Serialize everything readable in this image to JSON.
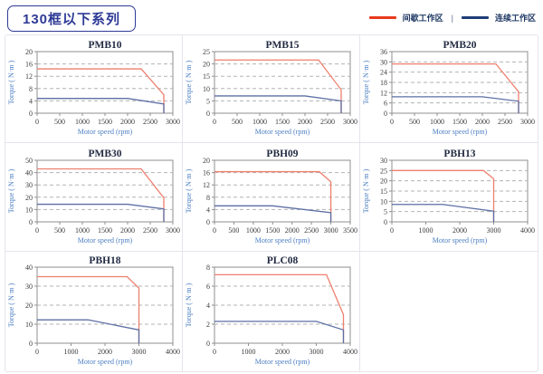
{
  "header": {
    "badge": "130框以下系列"
  },
  "legend": {
    "items": [
      {
        "label": "间歇工作区",
        "color": "#e8391d"
      },
      {
        "label": "连续工作区",
        "color": "#1e3c78"
      }
    ],
    "separator": "|"
  },
  "colors": {
    "chart_red": "#ee7f6d",
    "chart_blue": "#5d6fa5",
    "grid_line": "#b3b3b3",
    "plot_border": "#8f8f8f"
  },
  "axis": {
    "xlabel": "Motor speed (rpm)",
    "ylabel": "Torque ( N·m )"
  },
  "chart_data": [
    {
      "type": "line",
      "title": "PMB10",
      "xlabel": "Motor speed (rpm)",
      "ylabel": "Torque ( N·m )",
      "xlim": [
        0,
        3000
      ],
      "ylim": [
        0,
        20
      ],
      "xticks": [
        0,
        500,
        1000,
        1500,
        2000,
        2500,
        3000
      ],
      "yticks": [
        0,
        4,
        8,
        12,
        16,
        20
      ],
      "series": [
        {
          "name": "间歇工作区",
          "color": "red",
          "points": [
            [
              0,
              14.4
            ],
            [
              2300,
              14.4
            ],
            [
              2800,
              6
            ],
            [
              2800,
              0
            ]
          ]
        },
        {
          "name": "连续工作区",
          "color": "blue",
          "points": [
            [
              0,
              4.8
            ],
            [
              2000,
              4.8
            ],
            [
              2800,
              3
            ],
            [
              2800,
              0
            ]
          ]
        }
      ]
    },
    {
      "type": "line",
      "title": "PMB15",
      "xlabel": "Motor speed (rpm)",
      "ylabel": "Torque ( N·m )",
      "xlim": [
        0,
        3000
      ],
      "ylim": [
        0,
        25
      ],
      "xticks": [
        0,
        500,
        1000,
        1500,
        2000,
        2500,
        3000
      ],
      "yticks": [
        0,
        5,
        10,
        15,
        20,
        25
      ],
      "series": [
        {
          "name": "间歇工作区",
          "color": "red",
          "points": [
            [
              0,
              21.6
            ],
            [
              2300,
              21.6
            ],
            [
              2800,
              9.5
            ],
            [
              2800,
              0
            ]
          ]
        },
        {
          "name": "连续工作区",
          "color": "blue",
          "points": [
            [
              0,
              7
            ],
            [
              2000,
              7
            ],
            [
              2800,
              5
            ],
            [
              2800,
              0
            ]
          ]
        }
      ]
    },
    {
      "type": "line",
      "title": "PMB20",
      "xlabel": "Motor speed (rpm)",
      "ylabel": "Torque ( N·m )",
      "xlim": [
        0,
        3000
      ],
      "ylim": [
        0,
        36
      ],
      "xticks": [
        0,
        500,
        1000,
        1500,
        2000,
        2500,
        3000
      ],
      "yticks": [
        0,
        6,
        12,
        18,
        24,
        30,
        36
      ],
      "series": [
        {
          "name": "间歇工作区",
          "color": "red",
          "points": [
            [
              0,
              28.8
            ],
            [
              2300,
              28.8
            ],
            [
              2800,
              12.5
            ],
            [
              2800,
              0
            ]
          ]
        },
        {
          "name": "连续工作区",
          "color": "blue",
          "points": [
            [
              0,
              9.6
            ],
            [
              2000,
              9.6
            ],
            [
              2800,
              7
            ],
            [
              2800,
              0
            ]
          ]
        }
      ]
    },
    {
      "type": "line",
      "title": "PMB30",
      "xlabel": "Motor speed (rpm)",
      "ylabel": "Torque ( N·m )",
      "xlim": [
        0,
        3000
      ],
      "ylim": [
        0,
        50
      ],
      "xticks": [
        0,
        500,
        1000,
        1500,
        2000,
        2500,
        3000
      ],
      "yticks": [
        0,
        10,
        20,
        30,
        40,
        50
      ],
      "series": [
        {
          "name": "间歇工作区",
          "color": "red",
          "points": [
            [
              0,
              43
            ],
            [
              2300,
              43
            ],
            [
              2800,
              19.5
            ],
            [
              2800,
              0
            ]
          ]
        },
        {
          "name": "连续工作区",
          "color": "blue",
          "points": [
            [
              0,
              14.3
            ],
            [
              2000,
              14.3
            ],
            [
              2800,
              10.5
            ],
            [
              2800,
              0
            ]
          ]
        }
      ]
    },
    {
      "type": "line",
      "title": "PBH09",
      "xlabel": "Motor speed (rpm)",
      "ylabel": "Torque ( N·m )",
      "xlim": [
        0,
        3500
      ],
      "ylim": [
        0,
        20
      ],
      "xticks": [
        0,
        500,
        1000,
        1500,
        2000,
        2500,
        3000,
        3500
      ],
      "yticks": [
        0,
        4,
        8,
        12,
        16,
        20
      ],
      "series": [
        {
          "name": "间歇工作区",
          "color": "red",
          "points": [
            [
              0,
              16.3
            ],
            [
              2700,
              16.3
            ],
            [
              3000,
              13
            ],
            [
              3000,
              0
            ]
          ]
        },
        {
          "name": "连续工作区",
          "color": "blue",
          "points": [
            [
              0,
              5.2
            ],
            [
              1500,
              5.2
            ],
            [
              3000,
              3
            ],
            [
              3000,
              0
            ]
          ]
        }
      ]
    },
    {
      "type": "line",
      "title": "PBH13",
      "xlabel": "Motor speed (rpm)",
      "ylabel": "Torque ( N·m )",
      "xlim": [
        0,
        4000
      ],
      "ylim": [
        0,
        30
      ],
      "xticks": [
        0,
        1000,
        2000,
        3000,
        4000
      ],
      "yticks": [
        0,
        5,
        10,
        15,
        20,
        25,
        30
      ],
      "series": [
        {
          "name": "间歇工作区",
          "color": "red",
          "points": [
            [
              0,
              25
            ],
            [
              2700,
              25
            ],
            [
              3000,
              21
            ],
            [
              3000,
              0
            ]
          ]
        },
        {
          "name": "连续工作区",
          "color": "blue",
          "points": [
            [
              0,
              8.5
            ],
            [
              1500,
              8.5
            ],
            [
              3000,
              5.2
            ],
            [
              3000,
              0
            ]
          ]
        }
      ]
    },
    {
      "type": "line",
      "title": "PBH18",
      "xlabel": "Motor speed (rpm)",
      "ylabel": "Torque ( N·m )",
      "xlim": [
        0,
        4000
      ],
      "ylim": [
        0,
        40
      ],
      "xticks": [
        0,
        1000,
        2000,
        3000,
        4000
      ],
      "yticks": [
        0,
        10,
        20,
        30,
        40
      ],
      "series": [
        {
          "name": "间歇工作区",
          "color": "red",
          "points": [
            [
              0,
              35
            ],
            [
              2650,
              35
            ],
            [
              3000,
              29
            ],
            [
              3000,
              0
            ]
          ]
        },
        {
          "name": "连续工作区",
          "color": "blue",
          "points": [
            [
              0,
              12.3
            ],
            [
              1500,
              12.3
            ],
            [
              3000,
              7
            ],
            [
              3000,
              0
            ]
          ]
        }
      ]
    },
    {
      "type": "line",
      "title": "PLC08",
      "xlabel": "Motor speed (rpm)",
      "ylabel": "Torque ( N·m )",
      "xlim": [
        0,
        4000
      ],
      "ylim": [
        0,
        8
      ],
      "xticks": [
        0,
        1000,
        2000,
        3000,
        4000
      ],
      "yticks": [
        0,
        2,
        4,
        6,
        8
      ],
      "series": [
        {
          "name": "间歇工作区",
          "color": "red",
          "points": [
            [
              0,
              7.2
            ],
            [
              3300,
              7.2
            ],
            [
              3800,
              3
            ],
            [
              3800,
              0
            ]
          ]
        },
        {
          "name": "连续工作区",
          "color": "blue",
          "points": [
            [
              0,
              2.3
            ],
            [
              3000,
              2.3
            ],
            [
              3800,
              1.4
            ],
            [
              3800,
              0
            ]
          ]
        }
      ]
    }
  ]
}
